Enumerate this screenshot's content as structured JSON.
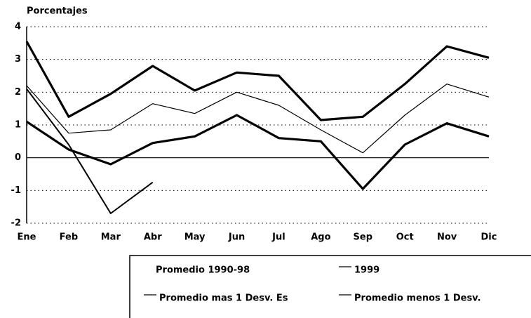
{
  "chart_data": {
    "type": "line",
    "y_label": "Porcentajes",
    "categories": [
      "Ene",
      "Feb",
      "Mar",
      "Abr",
      "May",
      "Jun",
      "Jul",
      "Ago",
      "Sep",
      "Oct",
      "Nov",
      "Dic"
    ],
    "ylim": [
      -2,
      4
    ],
    "yticks": [
      -2,
      -1,
      0,
      1,
      2,
      3,
      4
    ],
    "grid": true,
    "series": [
      {
        "name": "Promedio 1990-98",
        "color": "#000000",
        "values": [
          2.2,
          0.75,
          0.85,
          1.65,
          1.35,
          2.0,
          1.6,
          0.85,
          0.15,
          1.3,
          2.25,
          1.85
        ]
      },
      {
        "name": "1999",
        "color": "#000000",
        "values": [
          2.1,
          0.4,
          -1.7,
          -0.75,
          null,
          null,
          null,
          null,
          null,
          null,
          null,
          null
        ]
      },
      {
        "name": "Promedio mas 1 Desv. Es",
        "color": "#000000",
        "values": [
          3.55,
          1.25,
          1.95,
          2.8,
          2.05,
          2.6,
          2.5,
          1.15,
          1.25,
          2.25,
          3.4,
          3.05
        ]
      },
      {
        "name": "Promedio menos 1 Desv.",
        "color": "#000000",
        "values": [
          1.1,
          0.25,
          -0.2,
          0.45,
          0.65,
          1.3,
          0.6,
          0.5,
          -0.95,
          0.4,
          1.05,
          0.65
        ]
      }
    ]
  }
}
